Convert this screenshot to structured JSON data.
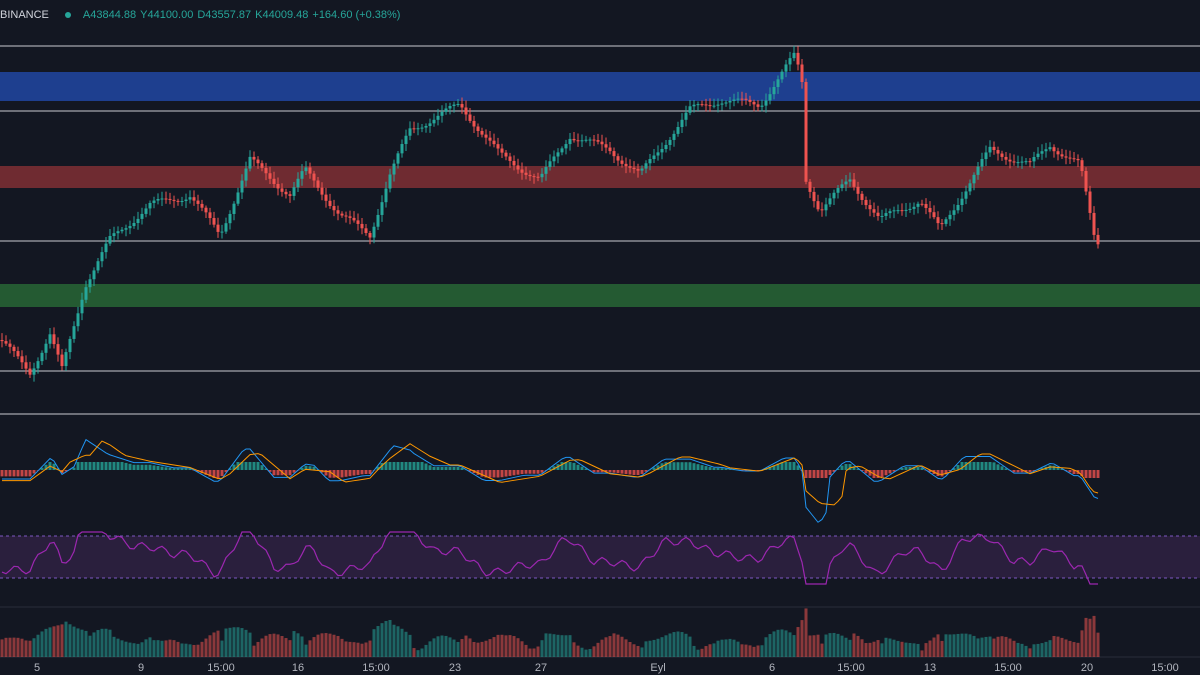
{
  "header": {
    "exchange": "BINANCE",
    "open": "A43844.88",
    "high": "Y44100.00",
    "low": "D43557.87",
    "close": "K44009.48",
    "change": "+164.60 (+0.38%)"
  },
  "time_axis": {
    "labels": [
      "5",
      "9",
      "15:00",
      "16",
      "15:00",
      "23",
      "27",
      "Eyl",
      "6",
      "15:00",
      "13",
      "15:00",
      "20",
      "15:00"
    ]
  }
}
